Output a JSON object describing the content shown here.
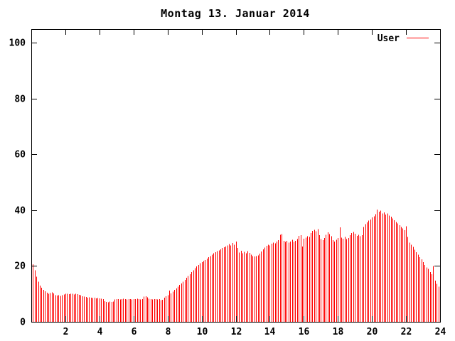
{
  "chart_data": {
    "type": "bar",
    "style": "impulses",
    "title": "Montag 13. Januar 2014",
    "xlabel": "",
    "ylabel": "",
    "xlim": [
      0,
      24
    ],
    "ylim": [
      0,
      100
    ],
    "xticks": [
      2,
      4,
      6,
      8,
      10,
      12,
      14,
      16,
      18,
      20,
      22,
      24
    ],
    "yticks": [
      0,
      20,
      40,
      60,
      80,
      100
    ],
    "grid": false,
    "legend_position": "top-right",
    "x_unit": "hour-of-day",
    "x_start": 0.1,
    "x_step": 0.1,
    "series": [
      {
        "name": "User",
        "color": "#ff0000",
        "values": [
          20.6,
          18.5,
          16.2,
          14.4,
          13.0,
          12.2,
          11.5,
          11.0,
          10.4,
          10.0,
          10.3,
          10.5,
          10.2,
          9.6,
          9.4,
          9.6,
          9.3,
          9.6,
          9.8,
          10.0,
          10.1,
          9.9,
          10.0,
          10.1,
          9.8,
          10.0,
          9.9,
          9.7,
          9.5,
          9.2,
          9.0,
          8.9,
          8.7,
          8.8,
          8.6,
          8.5,
          8.6,
          8.4,
          8.5,
          8.4,
          8.3,
          8.2,
          7.4,
          7.1,
          7.0,
          7.2,
          7.1,
          7.3,
          8.0,
          8.2,
          8.1,
          8.0,
          8.2,
          8.3,
          8.1,
          8.0,
          8.2,
          8.1,
          8.0,
          8.2,
          8.1,
          8.3,
          8.2,
          8.0,
          8.1,
          9.0,
          9.2,
          8.8,
          8.3,
          8.2,
          8.0,
          8.1,
          8.2,
          8.0,
          8.1,
          7.8,
          7.9,
          8.6,
          9.2,
          9.6,
          11.2,
          10.2,
          10.8,
          11.4,
          12.0,
          12.6,
          13.2,
          13.8,
          14.4,
          15.0,
          15.8,
          16.4,
          17.0,
          17.8,
          18.5,
          19.2,
          19.8,
          20.4,
          21.0,
          21.4,
          21.8,
          22.1,
          22.6,
          23.2,
          23.6,
          24.0,
          24.6,
          25.0,
          25.3,
          25.6,
          26.0,
          26.4,
          26.7,
          27.0,
          27.3,
          27.8,
          27.4,
          28.2,
          27.6,
          28.7,
          26.4,
          24.8,
          25.4,
          24.6,
          25.1,
          24.5,
          25.3,
          24.7,
          24.0,
          23.6,
          23.4,
          23.5,
          23.8,
          24.4,
          25.2,
          26.0,
          26.6,
          27.2,
          27.6,
          27.4,
          28.0,
          28.4,
          28.1,
          28.8,
          29.2,
          31.2,
          31.4,
          29.0,
          28.6,
          29.0,
          28.4,
          28.8,
          29.4,
          28.6,
          29.0,
          29.6,
          30.8,
          31.0,
          27.0,
          29.8,
          30.2,
          30.7,
          30.4,
          31.8,
          32.6,
          33.0,
          32.5,
          33.2,
          31.0,
          29.6,
          29.2,
          30.0,
          31.2,
          32.0,
          31.4,
          30.6,
          29.2,
          28.8,
          29.4,
          30.0,
          33.8,
          30.2,
          29.8,
          30.4,
          29.6,
          30.0,
          31.0,
          31.8,
          32.2,
          31.6,
          30.8,
          31.2,
          30.6,
          31.0,
          34.0,
          35.0,
          35.6,
          36.2,
          36.6,
          37.4,
          37.8,
          38.6,
          40.2,
          39.4,
          39.8,
          38.8,
          39.2,
          38.4,
          38.8,
          38.0,
          37.6,
          37.0,
          36.4,
          35.8,
          35.2,
          34.6,
          34.0,
          33.4,
          32.8,
          34.2,
          30.4,
          28.4,
          27.6,
          26.8,
          25.8,
          25.0,
          24.0,
          23.2,
          22.4,
          21.4,
          20.4,
          19.5,
          18.9,
          17.8,
          17.0,
          20.0,
          14.7,
          13.6,
          12.6,
          13.0
        ]
      }
    ],
    "colors": {
      "background": "#ffffff",
      "axis": "#000000",
      "text": "#000000",
      "bar": "#ff0000"
    }
  }
}
